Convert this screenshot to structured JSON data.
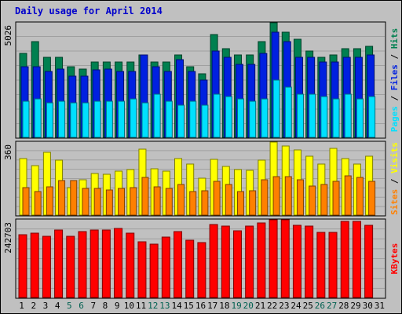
{
  "title": "Daily usage for April 2014",
  "colors": {
    "hits": "#008050",
    "files": "#0020e0",
    "pages": "#00e0ff",
    "visits": "#ffff00",
    "sites": "#ff8000",
    "kbytes": "#ff0000"
  },
  "chart_data": [
    {
      "type": "bar",
      "panel": "top",
      "ymax": 5026,
      "ymax_label": "5026",
      "categories": [
        "1",
        "2",
        "3",
        "4",
        "5",
        "6",
        "7",
        "8",
        "9",
        "10",
        "11",
        "12",
        "13",
        "14",
        "15",
        "16",
        "17",
        "18",
        "19",
        "20",
        "21",
        "22",
        "23",
        "24",
        "25",
        "26",
        "27",
        "28",
        "29",
        "30",
        "31"
      ],
      "series": [
        {
          "name": "Hits",
          "values": [
            3700,
            4200,
            3500,
            3500,
            3100,
            3000,
            3300,
            3300,
            3300,
            3300,
            3600,
            3300,
            3300,
            3600,
            3100,
            2800,
            4500,
            3900,
            3600,
            3600,
            4200,
            5026,
            4600,
            4300,
            3800,
            3500,
            3600,
            3900,
            3900,
            4000,
            0
          ]
        },
        {
          "name": "Files",
          "values": [
            3100,
            3100,
            2900,
            3000,
            2700,
            2700,
            2970,
            3000,
            2900,
            2900,
            3600,
            3100,
            2900,
            3400,
            2900,
            2500,
            3800,
            3500,
            3200,
            3200,
            3700,
            4600,
            4200,
            3500,
            3500,
            3300,
            3300,
            3500,
            3500,
            3600,
            0
          ]
        },
        {
          "name": "Pages",
          "values": [
            1600,
            1700,
            1500,
            1600,
            1500,
            1500,
            1600,
            1600,
            1600,
            1700,
            1500,
            1900,
            1600,
            1400,
            1600,
            1400,
            1900,
            1800,
            1700,
            1600,
            1700,
            2500,
            2200,
            1900,
            1900,
            1800,
            1700,
            1900,
            1700,
            1800,
            0
          ]
        }
      ],
      "axis_label": [
        "Pages",
        " / ",
        "Files",
        " / ",
        "Hits"
      ]
    },
    {
      "type": "bar",
      "panel": "middle",
      "ymax": 360,
      "ymax_label": "360",
      "series": [
        {
          "name": "Visits",
          "values": [
            280,
            245,
            310,
            270,
            135,
            175,
            205,
            200,
            215,
            225,
            325,
            230,
            215,
            280,
            250,
            180,
            275,
            240,
            225,
            220,
            270,
            360,
            340,
            320,
            290,
            250,
            330,
            280,
            250,
            290,
            0
          ]
        },
        {
          "name": "Sites",
          "values": [
            135,
            115,
            140,
            170,
            170,
            130,
            130,
            125,
            130,
            135,
            185,
            140,
            130,
            150,
            115,
            120,
            165,
            150,
            115,
            120,
            175,
            190,
            190,
            175,
            145,
            150,
            165,
            195,
            185,
            165,
            0
          ]
        }
      ],
      "axis_label": [
        "Sites",
        " / ",
        "Visits"
      ]
    },
    {
      "type": "bar",
      "panel": "bottom",
      "ymax": 242703,
      "ymax_label": "242703",
      "series": [
        {
          "name": "KBytes",
          "values": [
            196000,
            202000,
            192000,
            212000,
            192000,
            206000,
            212000,
            212000,
            216000,
            202000,
            175000,
            166000,
            188000,
            206000,
            178000,
            171000,
            227000,
            222000,
            208000,
            222000,
            232000,
            242703,
            242703,
            226000,
            222000,
            204000,
            204000,
            237000,
            237000,
            226000,
            0
          ]
        }
      ],
      "axis_label": [
        "KBytes"
      ]
    }
  ],
  "weekend_days": [
    5,
    6,
    12,
    13,
    19,
    20,
    26,
    27
  ],
  "weekday_color": "#000000",
  "weekend_color": "#006050"
}
